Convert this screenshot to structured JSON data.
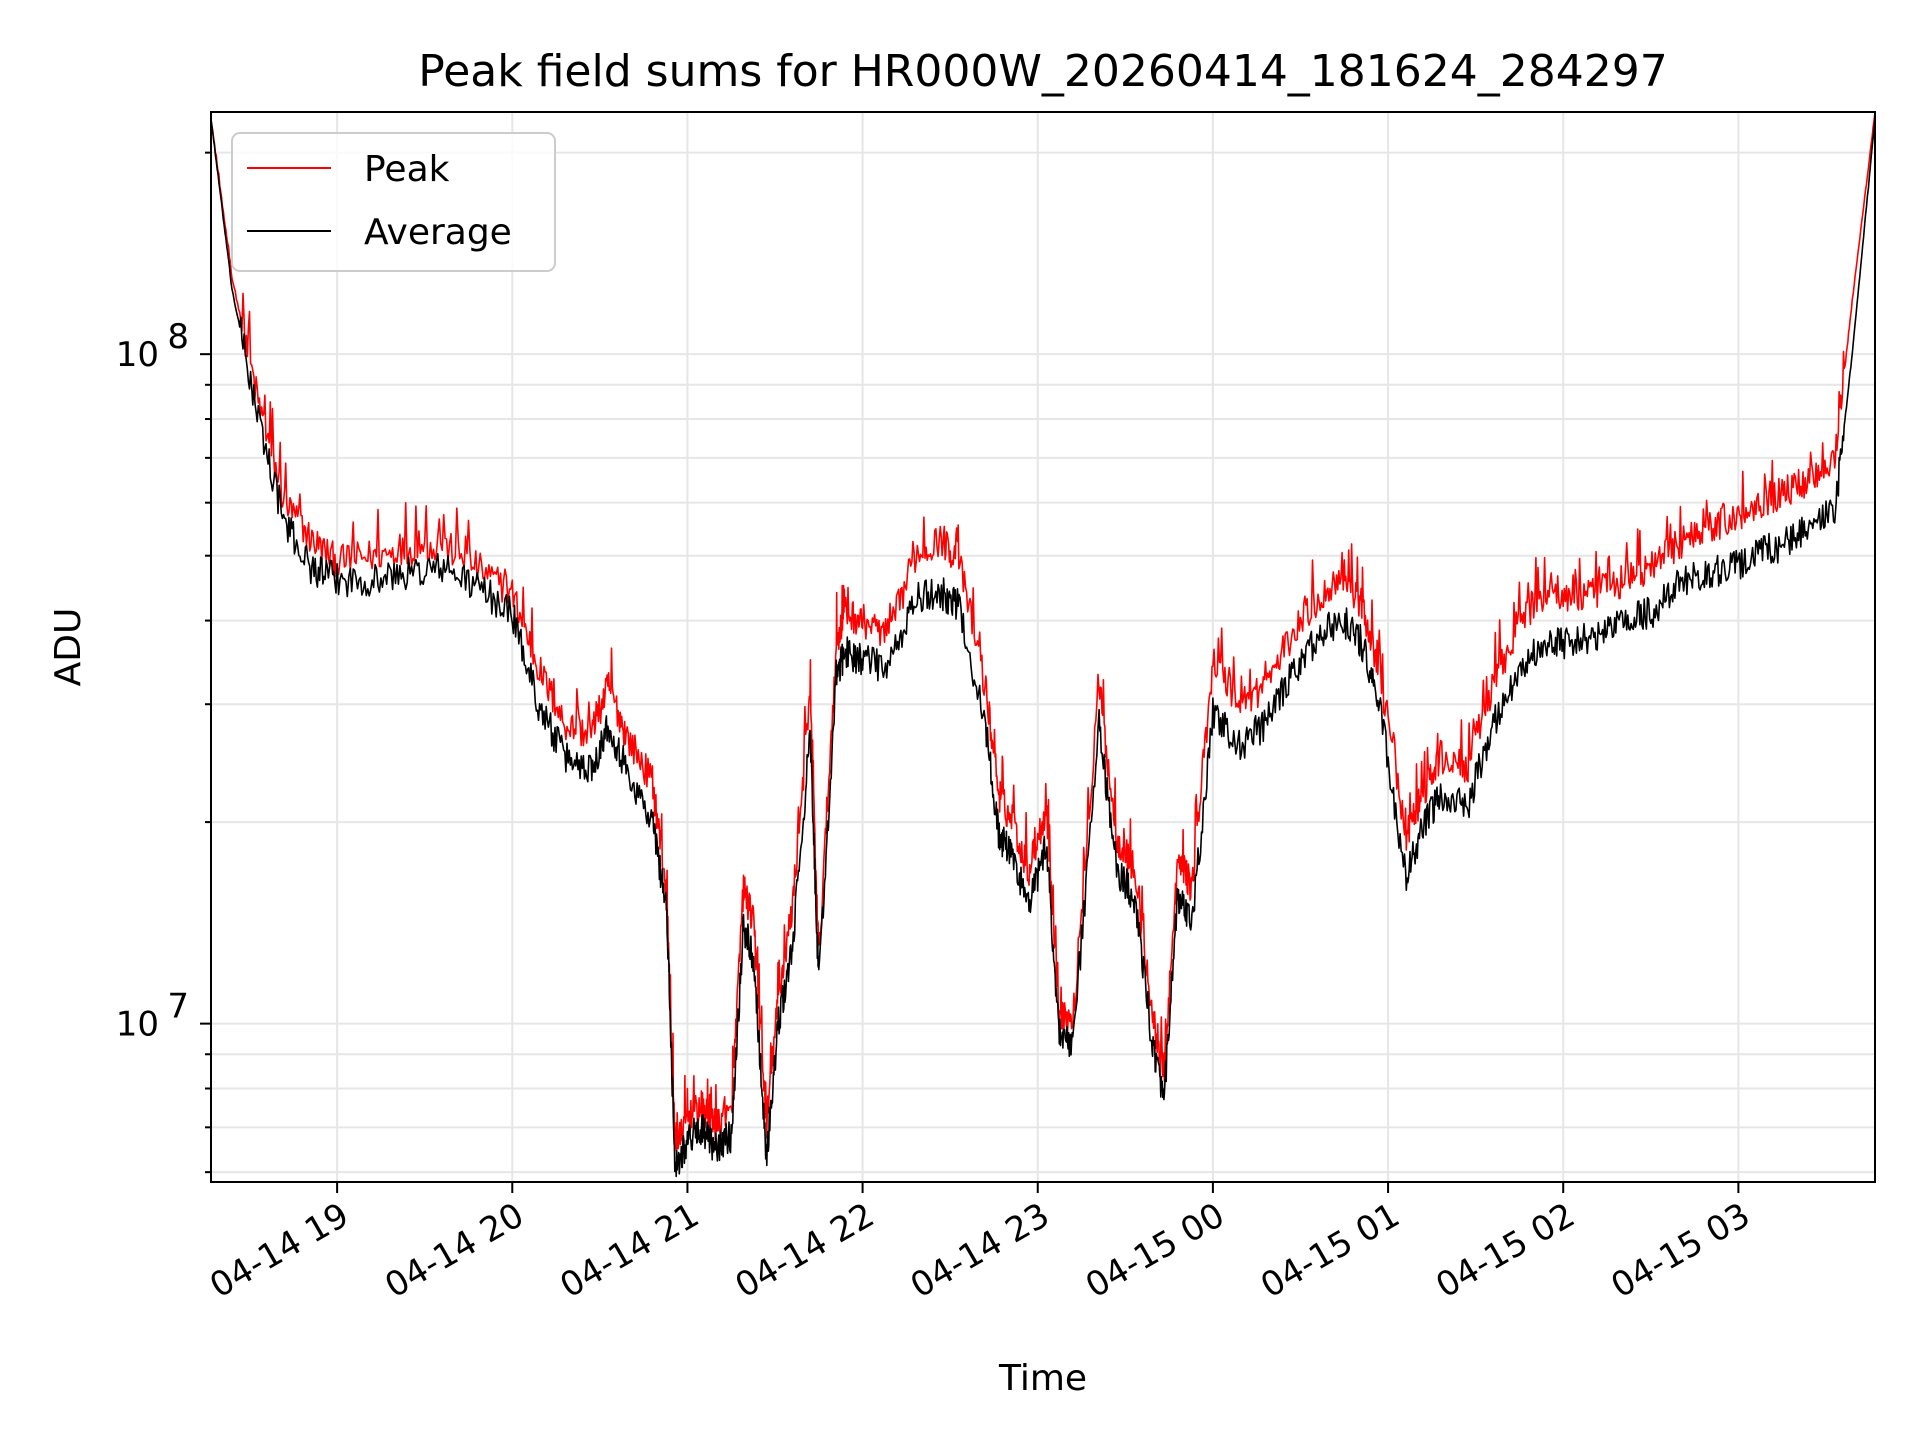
{
  "chart_data": {
    "type": "line",
    "title": "Peak field sums for HR000W_20260414_181624_284297",
    "xlabel": "Time",
    "ylabel": "ADU",
    "yscale": "log",
    "ylim": [
      5800000,
      230000000
    ],
    "xlim_hours": [
      18.28,
      27.78
    ],
    "grid": true,
    "legend_position": "upper-left",
    "y_ticks_major": [
      {
        "value": 10000000,
        "base": "10",
        "exp": "7"
      },
      {
        "value": 100000000,
        "base": "10",
        "exp": "8"
      }
    ],
    "x_ticks": [
      {
        "hour": 19,
        "label": "04-14 19"
      },
      {
        "hour": 20,
        "label": "04-14 20"
      },
      {
        "hour": 21,
        "label": "04-14 21"
      },
      {
        "hour": 22,
        "label": "04-14 22"
      },
      {
        "hour": 23,
        "label": "04-14 23"
      },
      {
        "hour": 24,
        "label": "04-15 00"
      },
      {
        "hour": 25,
        "label": "04-15 01"
      },
      {
        "hour": 26,
        "label": "04-15 02"
      },
      {
        "hour": 27,
        "label": "04-15 03"
      }
    ],
    "series": [
      {
        "name": "Peak",
        "color": "#ff0000",
        "x": [
          18.28,
          18.4,
          18.55,
          18.7,
          18.85,
          19.0,
          19.2,
          19.4,
          19.6,
          19.8,
          20.0,
          20.15,
          20.3,
          20.45,
          20.55,
          20.65,
          20.8,
          20.88,
          20.93,
          21.0,
          21.08,
          21.15,
          21.25,
          21.32,
          21.38,
          21.45,
          21.52,
          21.6,
          21.7,
          21.75,
          21.85,
          21.9,
          22.0,
          22.15,
          22.3,
          22.45,
          22.55,
          22.7,
          22.78,
          22.85,
          22.95,
          23.05,
          23.12,
          23.2,
          23.35,
          23.45,
          23.55,
          23.65,
          23.72,
          23.8,
          23.88,
          24.0,
          24.15,
          24.3,
          24.45,
          24.6,
          24.75,
          24.85,
          24.95,
          25.1,
          25.2,
          25.3,
          25.45,
          25.6,
          25.75,
          25.9,
          26.05,
          26.2,
          26.35,
          26.5,
          26.65,
          26.8,
          26.95,
          27.1,
          27.25,
          27.4,
          27.55,
          27.65,
          27.78
        ],
        "values": [
          225000000,
          130000000,
          85000000,
          60000000,
          53000000,
          49000000,
          50000000,
          51000000,
          52000000,
          48000000,
          44000000,
          34000000,
          28000000,
          27000000,
          32000000,
          27000000,
          23000000,
          16000000,
          6500000,
          7200000,
          7500000,
          7000000,
          7300000,
          16000000,
          14000000,
          7000000,
          11000000,
          15000000,
          31000000,
          12500000,
          37000000,
          41000000,
          40000000,
          38000000,
          50000000,
          53000000,
          49000000,
          32000000,
          22000000,
          20000000,
          17000000,
          21000000,
          10500000,
          10000000,
          32000000,
          19000000,
          17000000,
          10500000,
          8200000,
          17500000,
          16000000,
          35000000,
          30000000,
          32000000,
          38000000,
          43000000,
          47000000,
          42000000,
          34000000,
          19000000,
          22000000,
          25000000,
          24000000,
          32000000,
          40000000,
          44000000,
          43000000,
          44000000,
          46000000,
          48000000,
          52000000,
          55000000,
          56000000,
          60000000,
          62000000,
          65000000,
          70000000,
          120000000,
          230000000
        ]
      },
      {
        "name": "Average",
        "color": "#000000",
        "x": [
          18.28,
          18.4,
          18.55,
          18.7,
          18.85,
          19.0,
          19.2,
          19.4,
          19.6,
          19.8,
          20.0,
          20.15,
          20.3,
          20.45,
          20.55,
          20.65,
          20.8,
          20.88,
          20.93,
          21.0,
          21.08,
          21.15,
          21.25,
          21.32,
          21.38,
          21.45,
          21.52,
          21.6,
          21.7,
          21.75,
          21.85,
          21.9,
          22.0,
          22.15,
          22.3,
          22.45,
          22.55,
          22.7,
          22.78,
          22.85,
          22.95,
          23.05,
          23.12,
          23.2,
          23.35,
          23.45,
          23.55,
          23.65,
          23.72,
          23.8,
          23.88,
          24.0,
          24.15,
          24.3,
          24.45,
          24.6,
          24.75,
          24.85,
          24.95,
          25.1,
          25.2,
          25.3,
          25.45,
          25.6,
          25.75,
          25.9,
          26.05,
          26.2,
          26.35,
          26.5,
          26.65,
          26.8,
          26.95,
          27.1,
          27.25,
          27.4,
          27.55,
          27.65,
          27.78
        ],
        "values": [
          225000000,
          125000000,
          80000000,
          56000000,
          48000000,
          46000000,
          46000000,
          47000000,
          48000000,
          45000000,
          41000000,
          30000000,
          25000000,
          24000000,
          28000000,
          24000000,
          20000000,
          15000000,
          6100000,
          6700000,
          7000000,
          6500000,
          6800000,
          14000000,
          12500000,
          6300000,
          10000000,
          13000000,
          27000000,
          11500000,
          33000000,
          36000000,
          35000000,
          34000000,
          43000000,
          44000000,
          42000000,
          28000000,
          19000000,
          18000000,
          15000000,
          18500000,
          9800000,
          9200000,
          28000000,
          17000000,
          15500000,
          9600000,
          7600000,
          15500000,
          14000000,
          29000000,
          26000000,
          28000000,
          33000000,
          38000000,
          40000000,
          37000000,
          30000000,
          16500000,
          19500000,
          22000000,
          21000000,
          28000000,
          34000000,
          37000000,
          37000000,
          38000000,
          40000000,
          41000000,
          45000000,
          47000000,
          48000000,
          50000000,
          52000000,
          55000000,
          58000000,
          100000000,
          225000000
        ]
      }
    ]
  }
}
